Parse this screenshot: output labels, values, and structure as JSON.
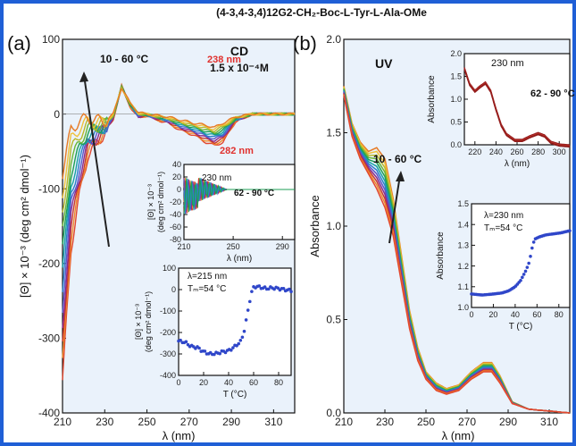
{
  "figure_title": "(4-3,4-3,4)12G2-CH₂-Boc-L-Tyr-L-Ala-OMe",
  "panel_a_label": "(a)",
  "panel_b_label": "(b)",
  "colors": {
    "frame": "#1f5fd6",
    "bg": "#eaf2fb",
    "red_label": "#e0312e",
    "blue_series": "#2f46c9",
    "arrow": "#222222",
    "spectra": [
      "#e2472f",
      "#f08a2c",
      "#c8382e",
      "#8c2a8a",
      "#5b57c8",
      "#2c7ec9",
      "#18a0a4",
      "#1e9e54",
      "#6ab535",
      "#b8b82a",
      "#f0c23a",
      "#e77a24"
    ]
  },
  "chart_data": [
    {
      "id": "cd-main",
      "type": "line",
      "title": "CD",
      "annotation_conc": "1.5 x 10⁻⁴M",
      "annotation_temp": "10 - 60 °C",
      "annotation_238": "238 nm",
      "annotation_282": "282 nm",
      "xlabel": "λ (nm)",
      "ylabel": "[Θ] × 10⁻³ (deg cm² dmol⁻¹)",
      "xlim": [
        210,
        320
      ],
      "ylim": [
        -400,
        100
      ],
      "xticks": [
        "210",
        "230",
        "250",
        "270",
        "290",
        "310"
      ],
      "yticks": [
        "100",
        "0",
        "-100",
        "-200",
        "-300",
        "-400"
      ],
      "series_anchors": [
        [
          [
            210,
            -360
          ],
          [
            214,
            -180
          ],
          [
            218,
            -110
          ],
          [
            222,
            -55
          ],
          [
            226,
            -40
          ],
          [
            230,
            -25
          ],
          [
            234,
            -8
          ],
          [
            238,
            38
          ],
          [
            242,
            10
          ],
          [
            246,
            -5
          ],
          [
            250,
            -2
          ],
          [
            255,
            -8
          ],
          [
            260,
            -12
          ],
          [
            266,
            -22
          ],
          [
            272,
            -28
          ],
          [
            278,
            -38
          ],
          [
            282,
            -42
          ],
          [
            286,
            -38
          ],
          [
            292,
            -10
          ],
          [
            300,
            0
          ],
          [
            320,
            0
          ]
        ],
        [
          [
            210,
            -80
          ],
          [
            214,
            -20
          ],
          [
            218,
            -10
          ],
          [
            222,
            -5
          ],
          [
            226,
            -8
          ],
          [
            230,
            -10
          ],
          [
            234,
            0
          ],
          [
            238,
            35
          ],
          [
            242,
            15
          ],
          [
            246,
            2
          ],
          [
            250,
            0
          ],
          [
            255,
            -2
          ],
          [
            260,
            -4
          ],
          [
            266,
            -8
          ],
          [
            272,
            -12
          ],
          [
            278,
            -15
          ],
          [
            282,
            -18
          ],
          [
            286,
            -12
          ],
          [
            292,
            -4
          ],
          [
            300,
            0
          ],
          [
            320,
            0
          ]
        ]
      ]
    },
    {
      "id": "cd-inset-spectra",
      "type": "line",
      "annotation_wavelength": "230 nm",
      "annotation_temp": "62 - 90 °C",
      "xlabel": "λ (nm)",
      "ylabel_line1": "[Θ] × 10⁻³",
      "ylabel_line2": "(deg cm² dmol⁻¹)",
      "xlim": [
        210,
        300
      ],
      "ylim": [
        -80,
        40
      ],
      "xticks": [
        "210",
        "250",
        "290"
      ],
      "yticks": [
        "40",
        "20",
        "0",
        "-20",
        "-40",
        "-60",
        "-80"
      ]
    },
    {
      "id": "cd-inset-melt",
      "type": "scatter",
      "annotation_wavelength": "λ=215 nm",
      "annotation_tm": "Tₘ=54 °C",
      "xlabel": "T (°C)",
      "ylabel_line1": "[Θ] × 10⁻³",
      "ylabel_line2": "(deg cm² dmol⁻¹)",
      "xlim": [
        0,
        90
      ],
      "ylim": [
        -400,
        100
      ],
      "xticks": [
        "0",
        "20",
        "40",
        "60",
        "80"
      ],
      "yticks": [
        "100",
        "0",
        "-100",
        "-200",
        "-300",
        "-400"
      ],
      "anchors": [
        [
          0,
          -240
        ],
        [
          5,
          -245
        ],
        [
          10,
          -265
        ],
        [
          15,
          -270
        ],
        [
          20,
          -290
        ],
        [
          25,
          -300
        ],
        [
          30,
          -298
        ],
        [
          35,
          -290
        ],
        [
          40,
          -285
        ],
        [
          45,
          -265
        ],
        [
          50,
          -240
        ],
        [
          53,
          -180
        ],
        [
          56,
          -80
        ],
        [
          58,
          -20
        ],
        [
          60,
          10
        ],
        [
          62,
          15
        ],
        [
          66,
          10
        ],
        [
          70,
          5
        ],
        [
          75,
          8
        ],
        [
          80,
          5
        ],
        [
          85,
          0
        ],
        [
          90,
          -5
        ]
      ]
    },
    {
      "id": "uv-main",
      "type": "line",
      "title": "UV",
      "annotation_temp": "10 - 60 °C",
      "xlabel": "λ (nm)",
      "ylabel": "Absorbance",
      "xlim": [
        210,
        320
      ],
      "ylim": [
        0,
        2.0
      ],
      "xticks": [
        "210",
        "230",
        "250",
        "270",
        "290",
        "310"
      ],
      "yticks": [
        "0.0",
        "0.5",
        "1.0",
        "1.5",
        "2.0"
      ],
      "series_anchors": [
        [
          [
            210,
            1.75
          ],
          [
            214,
            1.55
          ],
          [
            218,
            1.45
          ],
          [
            222,
            1.4
          ],
          [
            226,
            1.42
          ],
          [
            230,
            1.36
          ],
          [
            234,
            1.15
          ],
          [
            238,
            0.85
          ],
          [
            242,
            0.55
          ],
          [
            246,
            0.35
          ],
          [
            250,
            0.22
          ],
          [
            255,
            0.16
          ],
          [
            260,
            0.13
          ],
          [
            266,
            0.15
          ],
          [
            272,
            0.22
          ],
          [
            278,
            0.27
          ],
          [
            282,
            0.27
          ],
          [
            286,
            0.2
          ],
          [
            292,
            0.06
          ],
          [
            300,
            0.02
          ],
          [
            320,
            0.0
          ]
        ],
        [
          [
            210,
            1.7
          ],
          [
            214,
            1.48
          ],
          [
            218,
            1.36
          ],
          [
            222,
            1.28
          ],
          [
            226,
            1.2
          ],
          [
            230,
            1.1
          ],
          [
            234,
            0.95
          ],
          [
            238,
            0.7
          ],
          [
            242,
            0.45
          ],
          [
            246,
            0.28
          ],
          [
            250,
            0.18
          ],
          [
            255,
            0.12
          ],
          [
            260,
            0.1
          ],
          [
            266,
            0.12
          ],
          [
            272,
            0.18
          ],
          [
            278,
            0.22
          ],
          [
            282,
            0.22
          ],
          [
            286,
            0.16
          ],
          [
            292,
            0.05
          ],
          [
            300,
            0.02
          ],
          [
            320,
            0.0
          ]
        ]
      ]
    },
    {
      "id": "uv-inset-spectra",
      "type": "line",
      "annotation_wavelength": "230 nm",
      "annotation_temp": "62 - 90 °C",
      "xlabel": "λ (nm)",
      "ylabel": "Absorbance",
      "xlim": [
        210,
        310
      ],
      "ylim": [
        0,
        2.0
      ],
      "xticks": [
        "220",
        "240",
        "260",
        "280",
        "300"
      ],
      "yticks": [
        "2.0",
        "1.5",
        "1.0",
        "0.5",
        "0.0"
      ],
      "anchors": [
        [
          210,
          1.7
        ],
        [
          215,
          1.35
        ],
        [
          220,
          1.2
        ],
        [
          225,
          1.3
        ],
        [
          230,
          1.38
        ],
        [
          235,
          1.2
        ],
        [
          240,
          0.8
        ],
        [
          245,
          0.45
        ],
        [
          250,
          0.25
        ],
        [
          258,
          0.12
        ],
        [
          265,
          0.12
        ],
        [
          272,
          0.2
        ],
        [
          280,
          0.27
        ],
        [
          286,
          0.22
        ],
        [
          292,
          0.08
        ],
        [
          300,
          0.02
        ],
        [
          310,
          0.0
        ]
      ]
    },
    {
      "id": "uv-inset-melt",
      "type": "scatter",
      "annotation_wavelength": "λ=230 nm",
      "annotation_tm": "Tₘ=54 °C",
      "xlabel": "T (°C)",
      "ylabel": "Absorbance",
      "xlim": [
        0,
        90
      ],
      "ylim": [
        1.0,
        1.5
      ],
      "xticks": [
        "0",
        "20",
        "40",
        "60",
        "80"
      ],
      "yticks": [
        "1.5",
        "1.4",
        "1.3",
        "1.2",
        "1.1",
        "1.0"
      ],
      "anchors": [
        [
          0,
          1.065
        ],
        [
          10,
          1.06
        ],
        [
          20,
          1.065
        ],
        [
          28,
          1.07
        ],
        [
          34,
          1.08
        ],
        [
          40,
          1.1
        ],
        [
          45,
          1.13
        ],
        [
          50,
          1.18
        ],
        [
          53,
          1.22
        ],
        [
          56,
          1.3
        ],
        [
          58,
          1.33
        ],
        [
          62,
          1.34
        ],
        [
          68,
          1.35
        ],
        [
          75,
          1.355
        ],
        [
          82,
          1.36
        ],
        [
          90,
          1.37
        ]
      ]
    }
  ]
}
